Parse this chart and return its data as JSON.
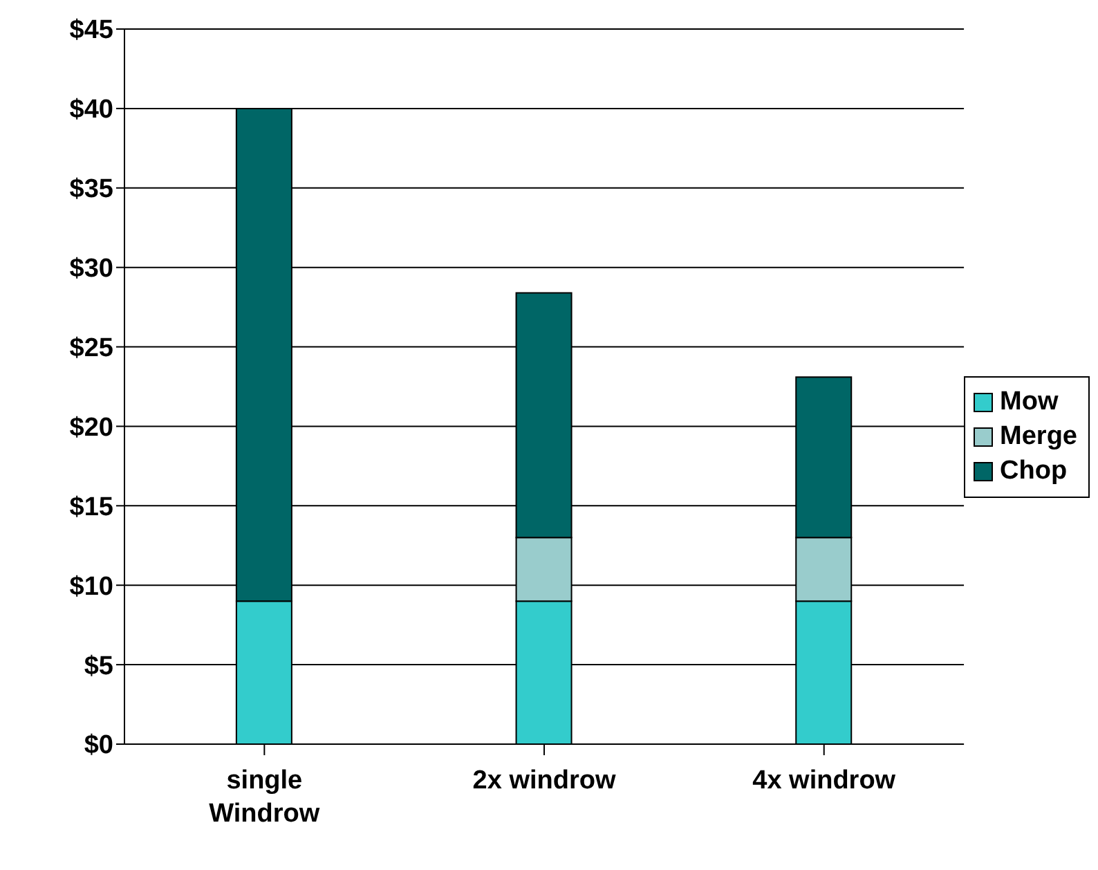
{
  "chart_data": {
    "type": "bar",
    "stacked": true,
    "categories": [
      "single Windrow",
      "2x windrow",
      "4x windrow"
    ],
    "series": [
      {
        "name": "Mow",
        "color": "#33cccc",
        "values": [
          9,
          9,
          9
        ]
      },
      {
        "name": "Merge",
        "color": "#99cccc",
        "values": [
          0,
          4,
          4
        ]
      },
      {
        "name": "Chop",
        "color": "#006666",
        "values": [
          31,
          15.4,
          10.1
        ]
      }
    ],
    "ylim": [
      0,
      45
    ],
    "yticks": [
      {
        "value": 0,
        "label": "$0"
      },
      {
        "value": 5,
        "label": "$5"
      },
      {
        "value": 10,
        "label": "$10"
      },
      {
        "value": 15,
        "label": "$15"
      },
      {
        "value": 20,
        "label": "$20"
      },
      {
        "value": 25,
        "label": "$25"
      },
      {
        "value": 30,
        "label": "$30"
      },
      {
        "value": 35,
        "label": "$35"
      },
      {
        "value": 40,
        "label": "$40"
      },
      {
        "value": 45,
        "label": "$45"
      }
    ],
    "grid": "y",
    "legend": "right"
  }
}
